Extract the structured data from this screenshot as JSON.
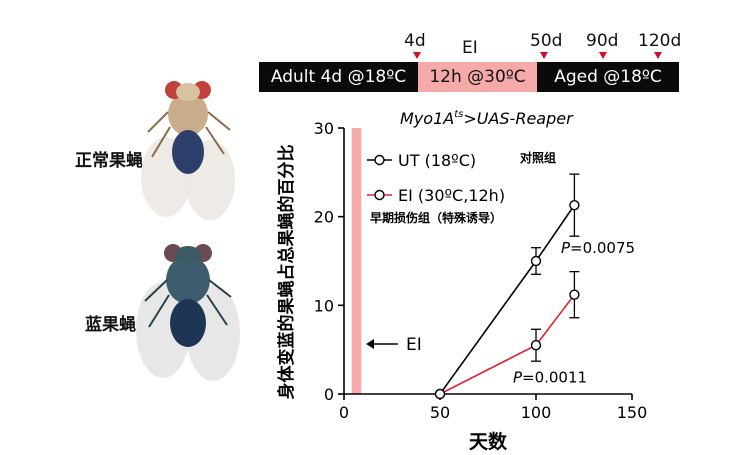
{
  "flies": {
    "normal_label": "正常果蝇",
    "blue_label": "蓝果蝇"
  },
  "timeline": {
    "segments": [
      {
        "label": "Adult 4d @18ºC",
        "color": "#0a0a0a",
        "text_color": "#ffffff"
      },
      {
        "label": "12h @30ºC",
        "color": "#f6a9a9",
        "text_color": "#111111"
      },
      {
        "label": "Aged @18ºC",
        "color": "#0a0a0a",
        "text_color": "#ffffff"
      }
    ],
    "ei_label": "EI",
    "markers": [
      "4d",
      "50d",
      "90d",
      "120d"
    ],
    "marker_color": "#d0102a"
  },
  "chart_data": {
    "type": "line",
    "title_main": "Myo1A",
    "title_sup": "ts",
    "title_rest": ">UAS-Reaper",
    "xlabel": "天数",
    "ylabel": "身体变蓝的果蝇占总果蝇的百分比",
    "xlim": [
      0,
      150
    ],
    "ylim": [
      0,
      30
    ],
    "xticks": [
      0,
      50,
      100,
      150
    ],
    "yticks": [
      0,
      10,
      20,
      30
    ],
    "ei_bar": {
      "x_range": [
        4,
        9
      ],
      "color": "#f6a9a9"
    },
    "ei_arrow_label": "EI",
    "series": [
      {
        "name": "UT (18ºC)",
        "note": "对照组",
        "color": "#000000",
        "x": [
          50,
          100,
          120
        ],
        "y": [
          0,
          15,
          21.3
        ],
        "err": [
          0,
          1.5,
          3.5
        ]
      },
      {
        "name": "EI (30ºC,12h)",
        "note": "早期损伤组（特殊诱导）",
        "color": "#e0202a",
        "x": [
          50,
          100,
          120
        ],
        "y": [
          0,
          5.5,
          11.2
        ],
        "err": [
          0,
          1.8,
          2.6
        ]
      }
    ],
    "annotations": [
      {
        "p": "P",
        "text": "=0.0075",
        "x": 113,
        "y": 15.9
      },
      {
        "p": "P",
        "text": "=0.0011",
        "x": 88,
        "y": 1.3
      }
    ]
  }
}
